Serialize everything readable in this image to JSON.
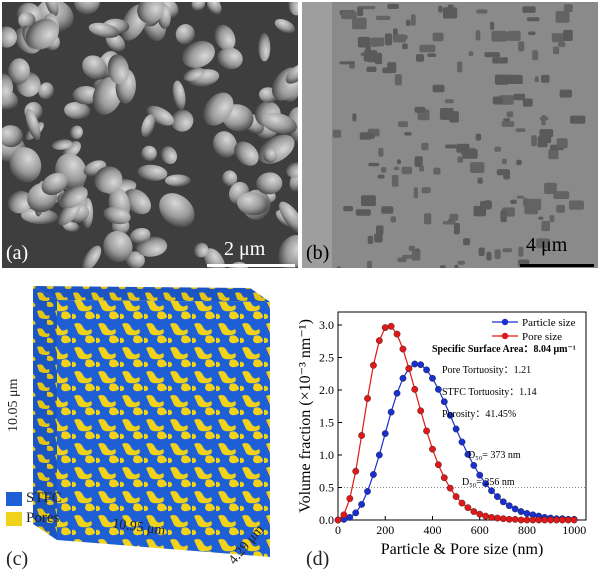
{
  "panels": {
    "a": {
      "letter": "(a)",
      "scale_label": "2 μm"
    },
    "b": {
      "letter": "(b)",
      "scale_label": "4 μm"
    },
    "c": {
      "letter": "(c)",
      "dims": {
        "height": "10.05 μm",
        "width": "10.95 μm",
        "depth": "4.29 μm"
      },
      "legend": [
        {
          "label": "STFC",
          "color": "#1f5fd6"
        },
        {
          "label": "Pores",
          "color": "#f0d21a"
        }
      ]
    },
    "d": {
      "letter": "(d)"
    }
  },
  "chart_data": {
    "type": "line",
    "xlabel": "Particle & Pore size (nm)",
    "ylabel": "Volume fraction (×10⁻³ nm⁻¹)",
    "xlim": [
      0,
      1050
    ],
    "ylim": [
      0,
      3.2
    ],
    "xticks": [
      0,
      200,
      400,
      600,
      800,
      1000
    ],
    "yticks": [
      0.0,
      0.5,
      1.0,
      1.5,
      2.0,
      2.5,
      3.0
    ],
    "legend_position": "top-right",
    "series": [
      {
        "name": "Particle size",
        "color": "#1a2fd0",
        "x": [
          0,
          25,
          50,
          75,
          100,
          125,
          150,
          175,
          200,
          225,
          250,
          275,
          300,
          325,
          350,
          375,
          400,
          425,
          450,
          475,
          500,
          525,
          550,
          575,
          600,
          625,
          650,
          675,
          700,
          725,
          750,
          775,
          800,
          825,
          850,
          875,
          900,
          925,
          950,
          975,
          1000
        ],
        "y": [
          0.0,
          0.01,
          0.04,
          0.11,
          0.24,
          0.44,
          0.7,
          1.0,
          1.33,
          1.66,
          1.95,
          2.18,
          2.33,
          2.4,
          2.39,
          2.31,
          2.18,
          2.01,
          1.82,
          1.61,
          1.4,
          1.2,
          1.01,
          0.84,
          0.69,
          0.56,
          0.45,
          0.36,
          0.28,
          0.22,
          0.17,
          0.13,
          0.1,
          0.08,
          0.06,
          0.04,
          0.03,
          0.02,
          0.02,
          0.01,
          0.01
        ]
      },
      {
        "name": "Pore size",
        "color": "#e01818",
        "x": [
          0,
          25,
          50,
          75,
          100,
          125,
          150,
          175,
          200,
          225,
          250,
          275,
          300,
          325,
          350,
          375,
          400,
          425,
          450,
          475,
          500,
          525,
          550,
          575,
          600,
          625,
          650,
          675,
          700,
          725,
          750,
          775,
          800,
          825,
          850,
          875,
          900,
          925,
          950,
          975,
          1000
        ],
        "y": [
          0.0,
          0.08,
          0.33,
          0.75,
          1.3,
          1.87,
          2.38,
          2.76,
          2.96,
          2.98,
          2.86,
          2.63,
          2.33,
          2.01,
          1.68,
          1.37,
          1.09,
          0.85,
          0.65,
          0.49,
          0.36,
          0.26,
          0.19,
          0.13,
          0.09,
          0.06,
          0.04,
          0.03,
          0.02,
          0.01,
          0.01,
          0.0,
          0.0,
          0.0,
          0.0,
          0.0,
          0.0,
          0.0,
          0.0,
          0.0,
          0.0
        ]
      }
    ],
    "annotations": [
      {
        "text": "Specific Surface Area：8.04 μm⁻¹",
        "bold": true
      },
      {
        "text": "Pore Tortuosity：1.21"
      },
      {
        "text": "STFC Tortuosity：1.14"
      },
      {
        "text": "Porosity：41.45%"
      },
      {
        "text": "D₅₀= 373 nm"
      },
      {
        "text": "D₅₀= 256 nm"
      }
    ],
    "reference_lines": [
      {
        "y": 0.5,
        "style": "dotted",
        "color": "#888888"
      }
    ]
  }
}
